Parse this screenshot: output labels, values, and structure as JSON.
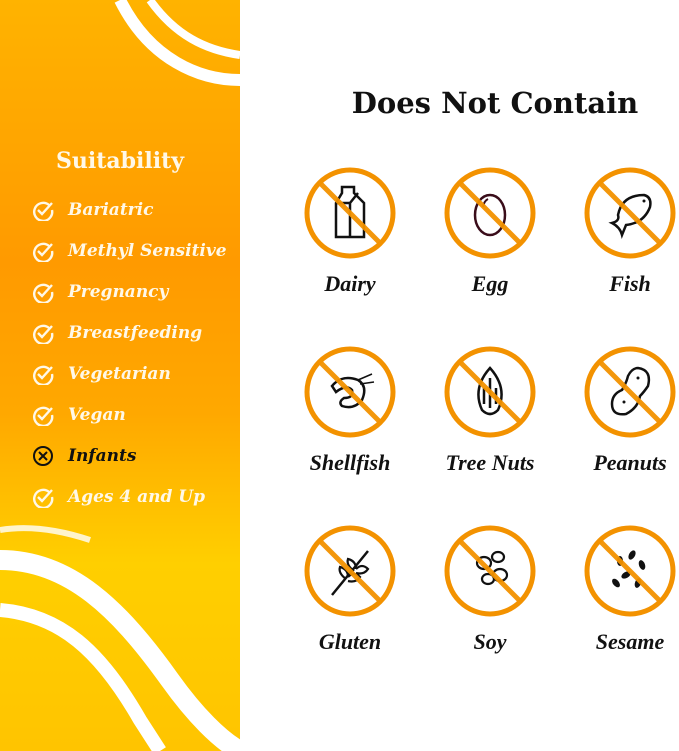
{
  "suitability": {
    "title": "Suitability",
    "items": [
      {
        "label": "Bariatric",
        "suitable": true
      },
      {
        "label": "Methyl Sensitive",
        "suitable": true
      },
      {
        "label": "Pregnancy",
        "suitable": true
      },
      {
        "label": "Breastfeeding",
        "suitable": true
      },
      {
        "label": "Vegetarian",
        "suitable": true
      },
      {
        "label": "Vegan",
        "suitable": true
      },
      {
        "label": "Infants",
        "suitable": false
      },
      {
        "label": "Ages 4 and Up",
        "suitable": true
      }
    ]
  },
  "does_not_contain": {
    "title": "Does Not Contain",
    "items": [
      {
        "label": "Dairy",
        "icon": "milk-carton-icon"
      },
      {
        "label": "Egg",
        "icon": "egg-icon"
      },
      {
        "label": "Fish",
        "icon": "fish-icon"
      },
      {
        "label": "Shellfish",
        "icon": "shrimp-icon"
      },
      {
        "label": "Tree Nuts",
        "icon": "almond-icon"
      },
      {
        "label": "Peanuts",
        "icon": "peanut-icon"
      },
      {
        "label": "Gluten",
        "icon": "wheat-icon"
      },
      {
        "label": "Soy",
        "icon": "soybean-icon"
      },
      {
        "label": "Sesame",
        "icon": "sesame-seeds-icon"
      }
    ]
  },
  "colors": {
    "accent": "#f39200",
    "panel_top": "#ffb300",
    "panel_bottom": "#ffcf00"
  }
}
